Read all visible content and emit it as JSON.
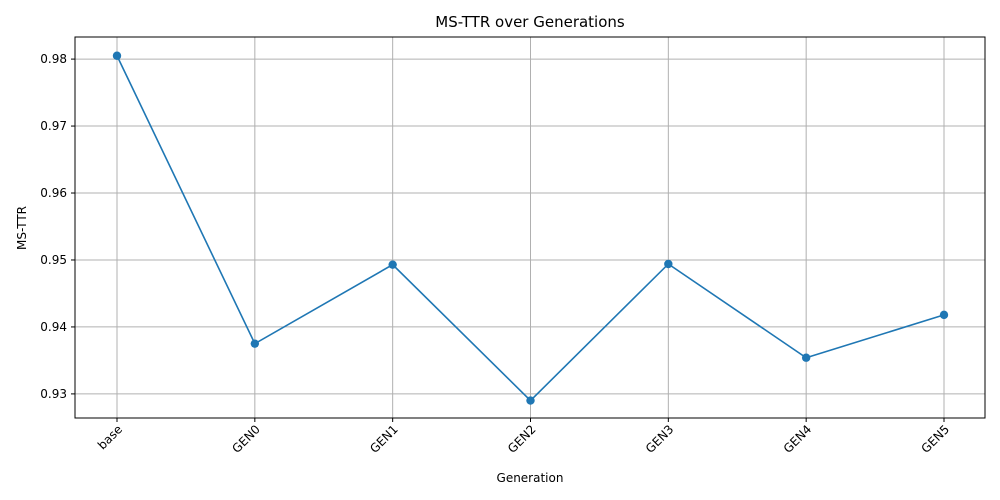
{
  "chart_data": {
    "type": "line",
    "title": "MS-TTR over Generations",
    "xlabel": "Generation",
    "ylabel": "MS-TTR",
    "categories": [
      "base",
      "GEN0",
      "GEN1",
      "GEN2",
      "GEN3",
      "GEN4",
      "GEN5"
    ],
    "series": [
      {
        "values": [
          0.9805,
          0.9375,
          0.9493,
          0.929,
          0.9494,
          0.9354,
          0.9418
        ]
      }
    ],
    "ylim": [
      0.9264,
      0.9833
    ],
    "yticks": [
      0.93,
      0.94,
      0.95,
      0.96,
      0.97,
      0.98
    ],
    "ytick_labels": [
      "0.93",
      "0.94",
      "0.95",
      "0.96",
      "0.97",
      "0.98"
    ],
    "grid": true,
    "marker": "circle",
    "colors": {
      "series": "#1f77b4",
      "grid": "#b0b0b0",
      "frame": "#000000"
    }
  }
}
